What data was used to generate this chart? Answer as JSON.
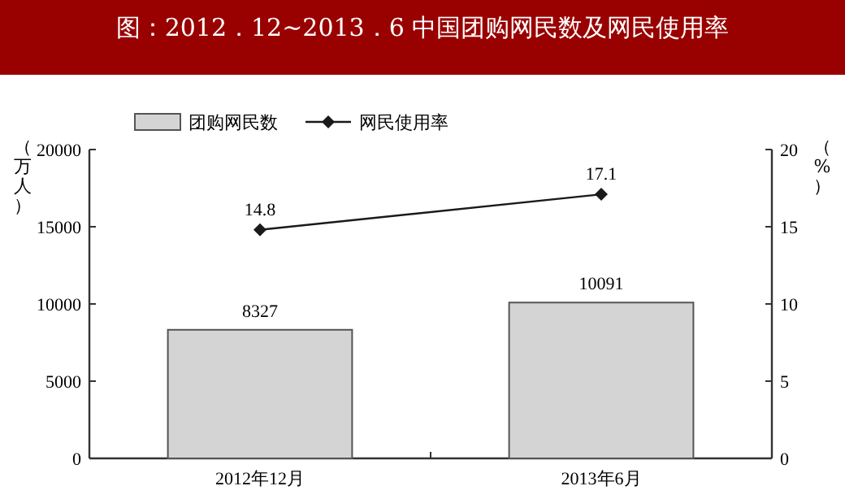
{
  "chart_data": {
    "type": "bar",
    "title": "图：2012．12~2013．6 中国团购网民数及网民使用率",
    "ylabel": "（万人）",
    "y2label": "（%）",
    "categories": [
      "2012年12月",
      "2013年6月"
    ],
    "series": [
      {
        "name": "团购网民数",
        "color": "#d4d4d4",
        "values": [
          8327,
          10091
        ]
      },
      {
        "name": "网民使用率",
        "type": "line",
        "axis": "y2",
        "color": "#1a1a1a",
        "marker": "diamond",
        "values": [
          14.8,
          17.1
        ]
      }
    ],
    "ylim": [
      0,
      20000
    ],
    "yticks": [
      0,
      5000,
      10000,
      15000,
      20000
    ],
    "y2lim": [
      0,
      20
    ],
    "y2ticks": [
      0,
      5,
      10,
      15,
      20
    ],
    "data_labels": true,
    "legend": "top",
    "grid": false
  }
}
